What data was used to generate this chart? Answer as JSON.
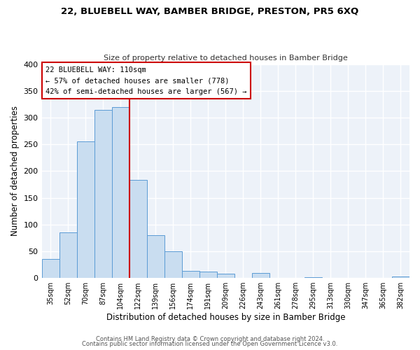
{
  "title": "22, BLUEBELL WAY, BAMBER BRIDGE, PRESTON, PR5 6XQ",
  "subtitle": "Size of property relative to detached houses in Bamber Bridge",
  "xlabel": "Distribution of detached houses by size in Bamber Bridge",
  "ylabel": "Number of detached properties",
  "bar_labels": [
    "35sqm",
    "52sqm",
    "70sqm",
    "87sqm",
    "104sqm",
    "122sqm",
    "139sqm",
    "156sqm",
    "174sqm",
    "191sqm",
    "209sqm",
    "226sqm",
    "243sqm",
    "261sqm",
    "278sqm",
    "295sqm",
    "313sqm",
    "330sqm",
    "347sqm",
    "365sqm",
    "382sqm"
  ],
  "bar_values": [
    35,
    85,
    255,
    315,
    320,
    183,
    80,
    50,
    14,
    12,
    8,
    0,
    10,
    0,
    0,
    2,
    0,
    0,
    0,
    0,
    3
  ],
  "bar_color": "#c9ddf0",
  "bar_edge_color": "#5b9bd5",
  "vline_x": 4.5,
  "vline_color": "#cc0000",
  "annotation_title": "22 BLUEBELL WAY: 110sqm",
  "annotation_line1": "← 57% of detached houses are smaller (778)",
  "annotation_line2": "42% of semi-detached houses are larger (567) →",
  "annotation_box_color": "#ffffff",
  "annotation_box_edge": "#cc0000",
  "ylim": [
    0,
    400
  ],
  "yticks": [
    0,
    50,
    100,
    150,
    200,
    250,
    300,
    350,
    400
  ],
  "footer1": "Contains HM Land Registry data © Crown copyright and database right 2024.",
  "footer2": "Contains public sector information licensed under the Open Government Licence v3.0.",
  "bg_color": "#ffffff",
  "plot_bg_color": "#edf2f9"
}
